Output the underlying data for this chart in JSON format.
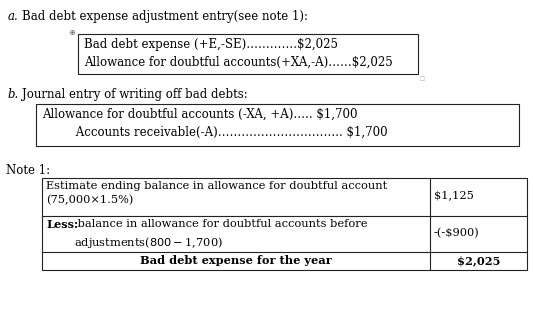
{
  "bg_color": "#ffffff",
  "text_color": "#000000",
  "font_family": "DejaVu Serif",
  "section_a_label": "a.",
  "section_a_title": "Bad debt expense adjustment entry(see note 1):",
  "section_a_line1": "Bad debt expense (+E,-SE)………….$2,025",
  "section_a_line2": "Allowance for doubtful accounts(+XA,-A)……$2,025",
  "section_b_label": "b.",
  "section_b_title": "Journal entry of writing off bad debts:",
  "section_b_line1": "Allowance for doubtful accounts (-XA, +A)….. $1,700",
  "section_b_line2": "         Accounts receivable(-A)………………………….. $1,700",
  "note_label": "Note 1:",
  "table_row1_col1": "Estimate ending balance in allowance for doubtful account\n(75,000×1.5%)",
  "table_row1_col2": "$1,125",
  "table_row2_col1_bold": "Less:",
  "table_row2_col1_rest": " balance in allowance for doubtful accounts before\nadjustments($800 - $1,700)",
  "table_row2_col2": "-(-$900)",
  "table_row3_col1": "Bad debt expense for the year",
  "table_row3_col2": "$2,025",
  "font_size": 8.5,
  "small_font_size": 8.2
}
